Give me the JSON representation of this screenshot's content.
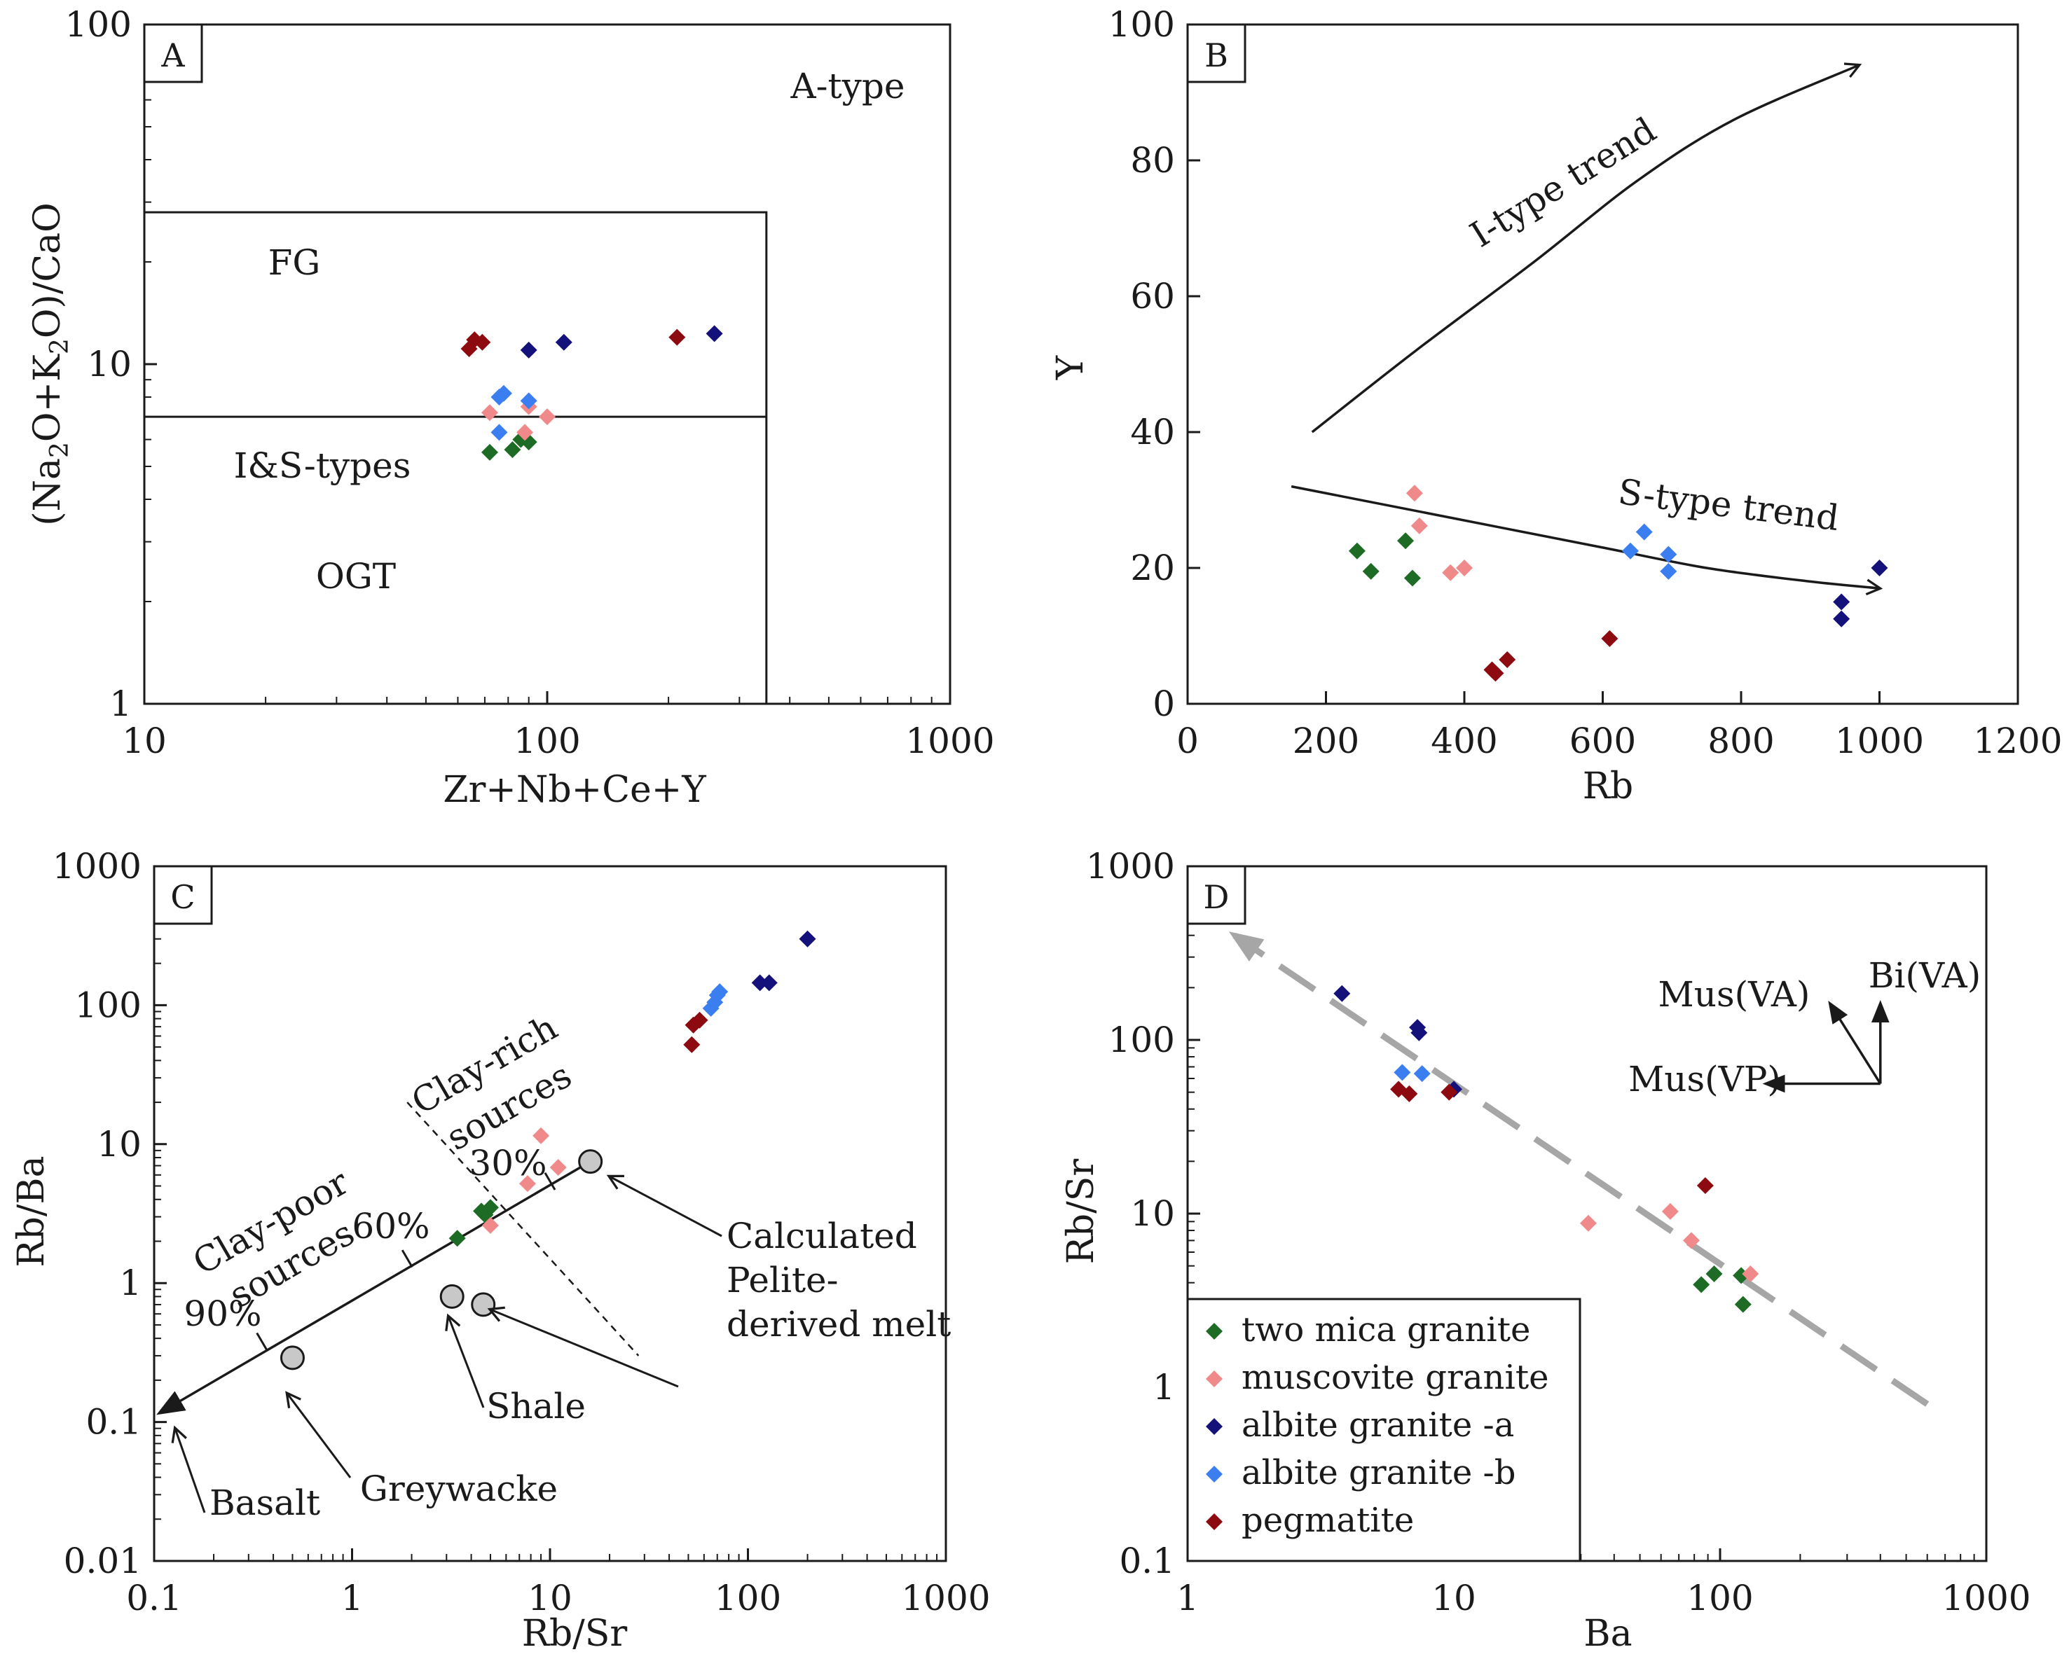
{
  "colors": {
    "two_mica": "#1d6b24",
    "muscovite": "#f08a8a",
    "albite_a": "#14127a",
    "albite_b": "#3a7ef0",
    "pegmatite": "#8c0a10",
    "model": "#c8c8c8",
    "trend_grey": "#a6a6a6"
  },
  "legend": [
    {
      "key": "two_mica",
      "label": "two mica granite"
    },
    {
      "key": "muscovite",
      "label": "muscovite granite"
    },
    {
      "key": "albite_a",
      "label": "albite granite -a"
    },
    {
      "key": "albite_b",
      "label": "albite granite -b"
    },
    {
      "key": "pegmatite",
      "label": "pegmatite"
    }
  ],
  "chart_data": [
    {
      "panel": "A",
      "type": "scatter",
      "xlabel": "Zr+Nb+Ce+Y",
      "ylabel": "(Na2O+K2O)/CaO",
      "xscale": "log",
      "yscale": "log",
      "xlim": [
        10,
        1000
      ],
      "ylim": [
        1,
        100
      ],
      "xticks": [
        "10",
        "100",
        "1000"
      ],
      "yticks": [
        "1",
        "10",
        "100"
      ],
      "field_labels": {
        "a_type": "A-type",
        "fg": "FG",
        "is_types": "I&S-types",
        "ogt": "OGT"
      },
      "field_boundaries": {
        "box_x_max": 350,
        "box_y_max": 28,
        "fg_ogt_y": 7
      },
      "series": [
        {
          "key": "two_mica",
          "points": [
            [
              72,
              5.5
            ],
            [
              82,
              5.6
            ],
            [
              86,
              6.0
            ],
            [
              90,
              5.9
            ]
          ]
        },
        {
          "key": "muscovite",
          "points": [
            [
              72,
              7.2
            ],
            [
              88,
              6.3
            ],
            [
              90,
              7.5
            ],
            [
              100,
              7.0
            ]
          ]
        },
        {
          "key": "albite_a",
          "points": [
            [
              90,
              11
            ],
            [
              110,
              11.6
            ],
            [
              260,
              12.3
            ]
          ]
        },
        {
          "key": "albite_b",
          "points": [
            [
              76,
              8.0
            ],
            [
              78,
              8.2
            ],
            [
              76,
              6.3
            ],
            [
              90,
              7.8
            ]
          ]
        },
        {
          "key": "pegmatite",
          "points": [
            [
              64,
              11.1
            ],
            [
              66,
              11.8
            ],
            [
              69,
              11.6
            ],
            [
              210,
              12.0
            ]
          ]
        }
      ]
    },
    {
      "panel": "B",
      "type": "scatter",
      "xlabel": "Rb",
      "ylabel": "Y",
      "xscale": "linear",
      "yscale": "linear",
      "xlim": [
        0,
        1200
      ],
      "ylim": [
        0,
        100
      ],
      "xticks": [
        "0",
        "200",
        "400",
        "600",
        "800",
        "1000",
        "1200"
      ],
      "yticks": [
        "0",
        "20",
        "40",
        "60",
        "80",
        "100"
      ],
      "i_trend": {
        "label": "I-type trend",
        "points": [
          [
            180,
            40
          ],
          [
            330,
            52
          ],
          [
            500,
            65
          ],
          [
            650,
            77
          ],
          [
            790,
            86
          ],
          [
            970,
            94
          ]
        ]
      },
      "s_trend": {
        "label": "S-type trend",
        "points": [
          [
            150,
            32
          ],
          [
            300,
            29
          ],
          [
            450,
            26
          ],
          [
            600,
            23
          ],
          [
            750,
            20
          ],
          [
            900,
            18
          ],
          [
            1000,
            17
          ]
        ]
      },
      "series": [
        {
          "key": "two_mica",
          "points": [
            [
              245,
              22.5
            ],
            [
              265,
              19.5
            ],
            [
              315,
              24
            ],
            [
              325,
              18.5
            ]
          ]
        },
        {
          "key": "muscovite",
          "points": [
            [
              328,
              31
            ],
            [
              335,
              26.2
            ],
            [
              380,
              19.3
            ],
            [
              400,
              20
            ]
          ]
        },
        {
          "key": "albite_a",
          "points": [
            [
              945,
              15
            ],
            [
              945,
              12.5
            ],
            [
              1000,
              20
            ]
          ]
        },
        {
          "key": "albite_b",
          "points": [
            [
              640,
              22.5
            ],
            [
              660,
              25.3
            ],
            [
              695,
              22
            ],
            [
              695,
              19.5
            ]
          ]
        },
        {
          "key": "pegmatite",
          "points": [
            [
              440,
              5
            ],
            [
              445,
              4.5
            ],
            [
              462,
              6.5
            ],
            [
              610,
              9.6
            ]
          ]
        }
      ]
    },
    {
      "panel": "C",
      "type": "scatter",
      "xlabel": "Rb/Sr",
      "ylabel": "Rb/Ba",
      "xscale": "log",
      "yscale": "log",
      "xlim": [
        0.1,
        1000
      ],
      "ylim": [
        0.01,
        1000
      ],
      "xticks": [
        "0.1",
        "1",
        "10",
        "100",
        "1000"
      ],
      "yticks": [
        "0.01",
        "0.1",
        "1",
        "10",
        "100",
        "1000"
      ],
      "mixing_line": {
        "from": [
          16,
          7.5
        ],
        "to": [
          0.1,
          0.11
        ]
      },
      "mixing_ticks": [
        {
          "label": "30%",
          "at": [
            10,
            5.4
          ]
        },
        {
          "label": "60%",
          "at": [
            1.9,
            1.5
          ]
        },
        {
          "label": "90%",
          "at": [
            0.35,
            0.38
          ]
        }
      ],
      "divider": {
        "from": [
          1.9,
          20
        ],
        "to": [
          28,
          0.3
        ]
      },
      "region_labels": {
        "clay_poor": [
          "Clay-poor",
          "sources"
        ],
        "clay_rich": [
          "Clay-rich",
          "sources"
        ]
      },
      "models": [
        {
          "label": "Basalt",
          "point": [
            0.1,
            0.11
          ]
        },
        {
          "label": "Greywacke",
          "point": [
            0.5,
            0.29
          ]
        },
        {
          "label": "Shale",
          "point": [
            3.2,
            0.8
          ]
        },
        {
          "label": "Shale",
          "point": [
            4.6,
            0.7
          ]
        },
        {
          "label": "Calculated Pelite-derived melt",
          "point": [
            16,
            7.5
          ]
        }
      ],
      "annotations": {
        "basalt": "Basalt",
        "greywacke": "Greywacke",
        "shale": "Shale",
        "calc1": "Calculated",
        "calc2": "Pelite-",
        "calc3": "derived melt"
      },
      "series": [
        {
          "key": "two_mica",
          "points": [
            [
              3.4,
              2.1
            ],
            [
              4.5,
              3.3
            ],
            [
              5.0,
              3.5
            ],
            [
              4.7,
              3.1
            ]
          ]
        },
        {
          "key": "muscovite",
          "points": [
            [
              5.0,
              2.6
            ],
            [
              7.7,
              5.2
            ],
            [
              9.0,
              11.5
            ],
            [
              11,
              6.8
            ]
          ]
        },
        {
          "key": "albite_a",
          "points": [
            [
              115,
              145
            ],
            [
              128,
              145
            ],
            [
              200,
              300
            ]
          ]
        },
        {
          "key": "albite_b",
          "points": [
            [
              65,
              95
            ],
            [
              68,
              105
            ],
            [
              70,
              118
            ],
            [
              72,
              125
            ]
          ]
        },
        {
          "key": "pegmatite",
          "points": [
            [
              52,
              52
            ],
            [
              53,
              72
            ],
            [
              57,
              78
            ]
          ]
        }
      ]
    },
    {
      "panel": "D",
      "type": "scatter",
      "xlabel": "Ba",
      "ylabel": "Rb/Sr",
      "xscale": "log",
      "yscale": "log",
      "xlim": [
        1,
        1000
      ],
      "ylim": [
        0.1,
        1000
      ],
      "xticks": [
        "1",
        "10",
        "100",
        "1000"
      ],
      "yticks": [
        "0.1",
        "1",
        "10",
        "100",
        "1000"
      ],
      "trend_line": {
        "from": [
          600,
          0.8
        ],
        "to": [
          1.5,
          400
        ]
      },
      "vectors": [
        {
          "label": "Mus(VA)",
          "to": [
            260,
            160
          ]
        },
        {
          "label": "Bi(VA)",
          "to": [
            400,
            160
          ]
        },
        {
          "label": "Mus(VP)",
          "to": [
            150,
            56
          ]
        }
      ],
      "vector_origin": [
        400,
        56
      ],
      "series": [
        {
          "key": "two_mica",
          "points": [
            [
              85,
              3.9
            ],
            [
              95,
              4.5
            ],
            [
              120,
              4.4
            ],
            [
              122,
              3.0
            ]
          ]
        },
        {
          "key": "muscovite",
          "points": [
            [
              32,
              8.8
            ],
            [
              65,
              10.3
            ],
            [
              78,
              7.0
            ],
            [
              130,
              4.5
            ]
          ]
        },
        {
          "key": "albite_a",
          "points": [
            [
              3.8,
              185
            ],
            [
              7.3,
              118
            ],
            [
              7.4,
              110
            ],
            [
              10,
              52
            ]
          ]
        },
        {
          "key": "albite_b",
          "points": [
            [
              6.4,
              65
            ],
            [
              7.6,
              64
            ]
          ]
        },
        {
          "key": "pegmatite",
          "points": [
            [
              6.2,
              52
            ],
            [
              6.8,
              49
            ],
            [
              9.6,
              50
            ],
            [
              88,
              14.5
            ]
          ]
        }
      ]
    }
  ]
}
